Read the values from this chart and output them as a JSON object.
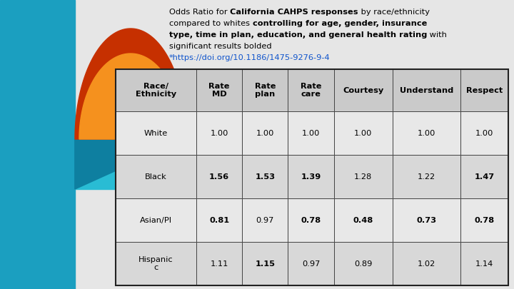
{
  "col_headers": [
    "Race/\nEthnicity",
    "Rate\nMD",
    "Rate\nplan",
    "Rate\ncare",
    "Courtesy",
    "Understand",
    "Respect"
  ],
  "rows": [
    [
      "White",
      "1.00",
      "1.00",
      "1.00",
      "1.00",
      "1.00",
      "1.00"
    ],
    [
      "Black",
      "1.56",
      "1.53",
      "1.39",
      "1.28",
      "1.22",
      "1.47"
    ],
    [
      "Asian/PI",
      "0.81",
      "0.97",
      "0.78",
      "0.48",
      "0.73",
      "0.78"
    ],
    [
      "Hispanic\nc",
      "1.11",
      "1.15",
      "0.97",
      "0.89",
      "1.02",
      "1.14"
    ]
  ],
  "bold_cells": {
    "1": [
      1,
      2,
      3,
      6
    ],
    "2": [
      1,
      3,
      4,
      5,
      6
    ],
    "3": [
      2
    ]
  },
  "bg_color": "#e6e6e6",
  "left_panel_color": "#1b9fc0",
  "link_color": "#1155cc",
  "fig_width": 7.2,
  "fig_height": 4.05,
  "dpi": 100
}
